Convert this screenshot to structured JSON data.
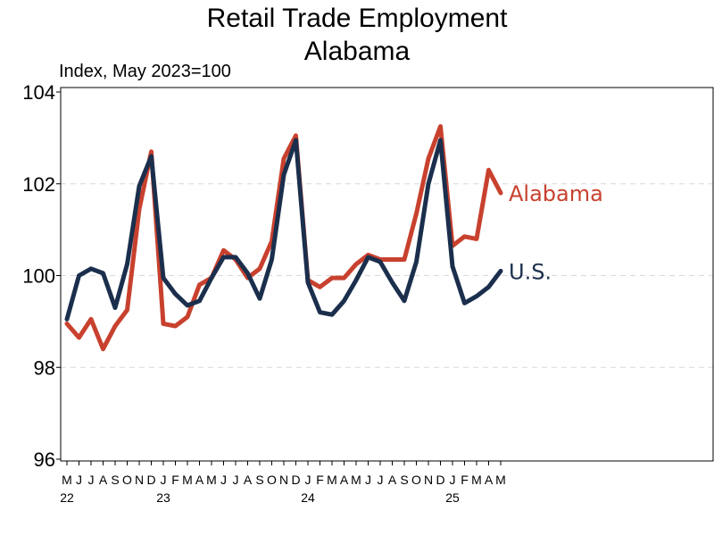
{
  "chart_data": {
    "type": "line",
    "title": "Retail Trade Employment",
    "subtitle": "Alabama",
    "ylabel": "Index, May 2023=100",
    "ylim": [
      96,
      104
    ],
    "yticks": [
      96,
      98,
      100,
      102,
      104
    ],
    "grid": true,
    "x": [
      "M",
      "J",
      "J",
      "A",
      "S",
      "O",
      "N",
      "D",
      "J",
      "F",
      "M",
      "A",
      "M",
      "J",
      "J",
      "A",
      "S",
      "O",
      "N",
      "D",
      "J",
      "F",
      "M",
      "A",
      "M",
      "J",
      "J",
      "A",
      "S",
      "O",
      "N",
      "D",
      "J",
      "F",
      "M",
      "A",
      "M"
    ],
    "year_labels": [
      {
        "label": "22",
        "index": 0
      },
      {
        "label": "23",
        "index": 8
      },
      {
        "label": "24",
        "index": 20
      },
      {
        "label": "25",
        "index": 32
      }
    ],
    "series": [
      {
        "name": "Alabama",
        "color": "#c8412e",
        "values": [
          98.95,
          98.65,
          99.05,
          98.4,
          98.9,
          99.25,
          101.45,
          102.7,
          98.95,
          98.9,
          99.1,
          99.8,
          99.95,
          100.55,
          100.35,
          99.95,
          100.15,
          100.75,
          102.55,
          103.05,
          99.9,
          99.75,
          99.95,
          99.95,
          100.25,
          100.45,
          100.35,
          100.35,
          100.35,
          101.35,
          102.55,
          103.25,
          100.65,
          100.85,
          100.8,
          102.3,
          101.8
        ]
      },
      {
        "name": "U.S.",
        "color": "#1b2f4d",
        "values": [
          99.05,
          100.0,
          100.15,
          100.05,
          99.3,
          100.25,
          101.95,
          102.6,
          99.95,
          99.6,
          99.35,
          99.45,
          99.95,
          100.4,
          100.4,
          100.05,
          99.5,
          100.35,
          102.2,
          102.95,
          99.85,
          99.2,
          99.15,
          99.45,
          99.9,
          100.4,
          100.3,
          99.85,
          99.45,
          100.3,
          102.0,
          102.95,
          100.2,
          99.4,
          99.55,
          99.75,
          100.1
        ]
      }
    ]
  }
}
